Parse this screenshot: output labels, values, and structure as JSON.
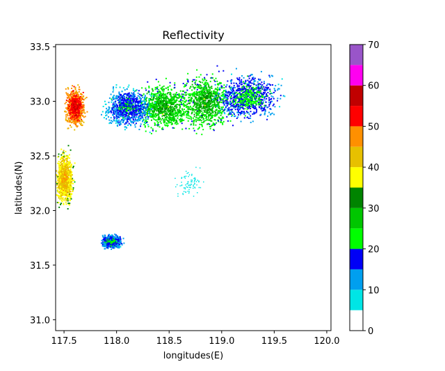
{
  "chart_data": {
    "type": "heatmap",
    "title": "Reflectivity",
    "xlabel": "longitudes(E)",
    "ylabel": "latitudes(N)",
    "xlim": [
      117.42,
      120.04
    ],
    "ylim": [
      30.9,
      33.52
    ],
    "x_ticks": [
      {
        "value": 117.5,
        "label": "117.5"
      },
      {
        "value": 118.0,
        "label": "118.0"
      },
      {
        "value": 118.5,
        "label": "118.5"
      },
      {
        "value": 119.0,
        "label": "119.0"
      },
      {
        "value": 119.5,
        "label": "119.5"
      },
      {
        "value": 120.0,
        "label": "120.0"
      }
    ],
    "y_ticks": [
      {
        "value": 31.0,
        "label": "31.0"
      },
      {
        "value": 31.5,
        "label": "31.5"
      },
      {
        "value": 32.0,
        "label": "32.0"
      },
      {
        "value": 32.5,
        "label": "32.5"
      },
      {
        "value": 33.0,
        "label": "33.0"
      },
      {
        "value": 33.5,
        "label": "33.5"
      }
    ],
    "colorbar": {
      "range": [
        0,
        70
      ],
      "tick_labels": [
        "0",
        "10",
        "20",
        "30",
        "40",
        "50",
        "60",
        "70"
      ],
      "bins": [
        {
          "from": 0,
          "to": 5,
          "color": "#ffffff"
        },
        {
          "from": 5,
          "to": 10,
          "color": "#00e5e5"
        },
        {
          "from": 10,
          "to": 15,
          "color": "#009fef"
        },
        {
          "from": 15,
          "to": 20,
          "color": "#0000f6"
        },
        {
          "from": 20,
          "to": 25,
          "color": "#00ff00"
        },
        {
          "from": 25,
          "to": 30,
          "color": "#00c600"
        },
        {
          "from": 30,
          "to": 35,
          "color": "#008400"
        },
        {
          "from": 35,
          "to": 40,
          "color": "#ffff00"
        },
        {
          "from": 40,
          "to": 45,
          "color": "#e7c000"
        },
        {
          "from": 45,
          "to": 50,
          "color": "#ff9000"
        },
        {
          "from": 50,
          "to": 55,
          "color": "#ff0000"
        },
        {
          "from": 55,
          "to": 60,
          "color": "#c00000"
        },
        {
          "from": 60,
          "to": 65,
          "color": "#ff00f0"
        },
        {
          "from": 65,
          "to": 70,
          "color": "#9955c9"
        }
      ]
    },
    "radar_center": {
      "lon": 118.69,
      "lat": 32.25
    },
    "echo_regions": [
      {
        "lon": 118.45,
        "lat": 32.95,
        "spread_lon": 0.22,
        "spread_lat": 0.18,
        "dbz": 20
      },
      {
        "lon": 118.85,
        "lat": 33.0,
        "spread_lon": 0.2,
        "spread_lat": 0.22,
        "dbz": 20
      },
      {
        "lon": 119.25,
        "lat": 33.05,
        "spread_lon": 0.25,
        "spread_lat": 0.18,
        "dbz": 12
      },
      {
        "lon": 118.1,
        "lat": 32.95,
        "spread_lon": 0.18,
        "spread_lat": 0.15,
        "dbz": 10
      },
      {
        "lon": 117.6,
        "lat": 32.95,
        "spread_lon": 0.08,
        "spread_lat": 0.15,
        "dbz": 45
      },
      {
        "lon": 117.5,
        "lat": 32.3,
        "spread_lon": 0.07,
        "spread_lat": 0.2,
        "dbz": 35
      },
      {
        "lon": 117.95,
        "lat": 31.72,
        "spread_lon": 0.08,
        "spread_lat": 0.05,
        "dbz": 12
      }
    ]
  }
}
